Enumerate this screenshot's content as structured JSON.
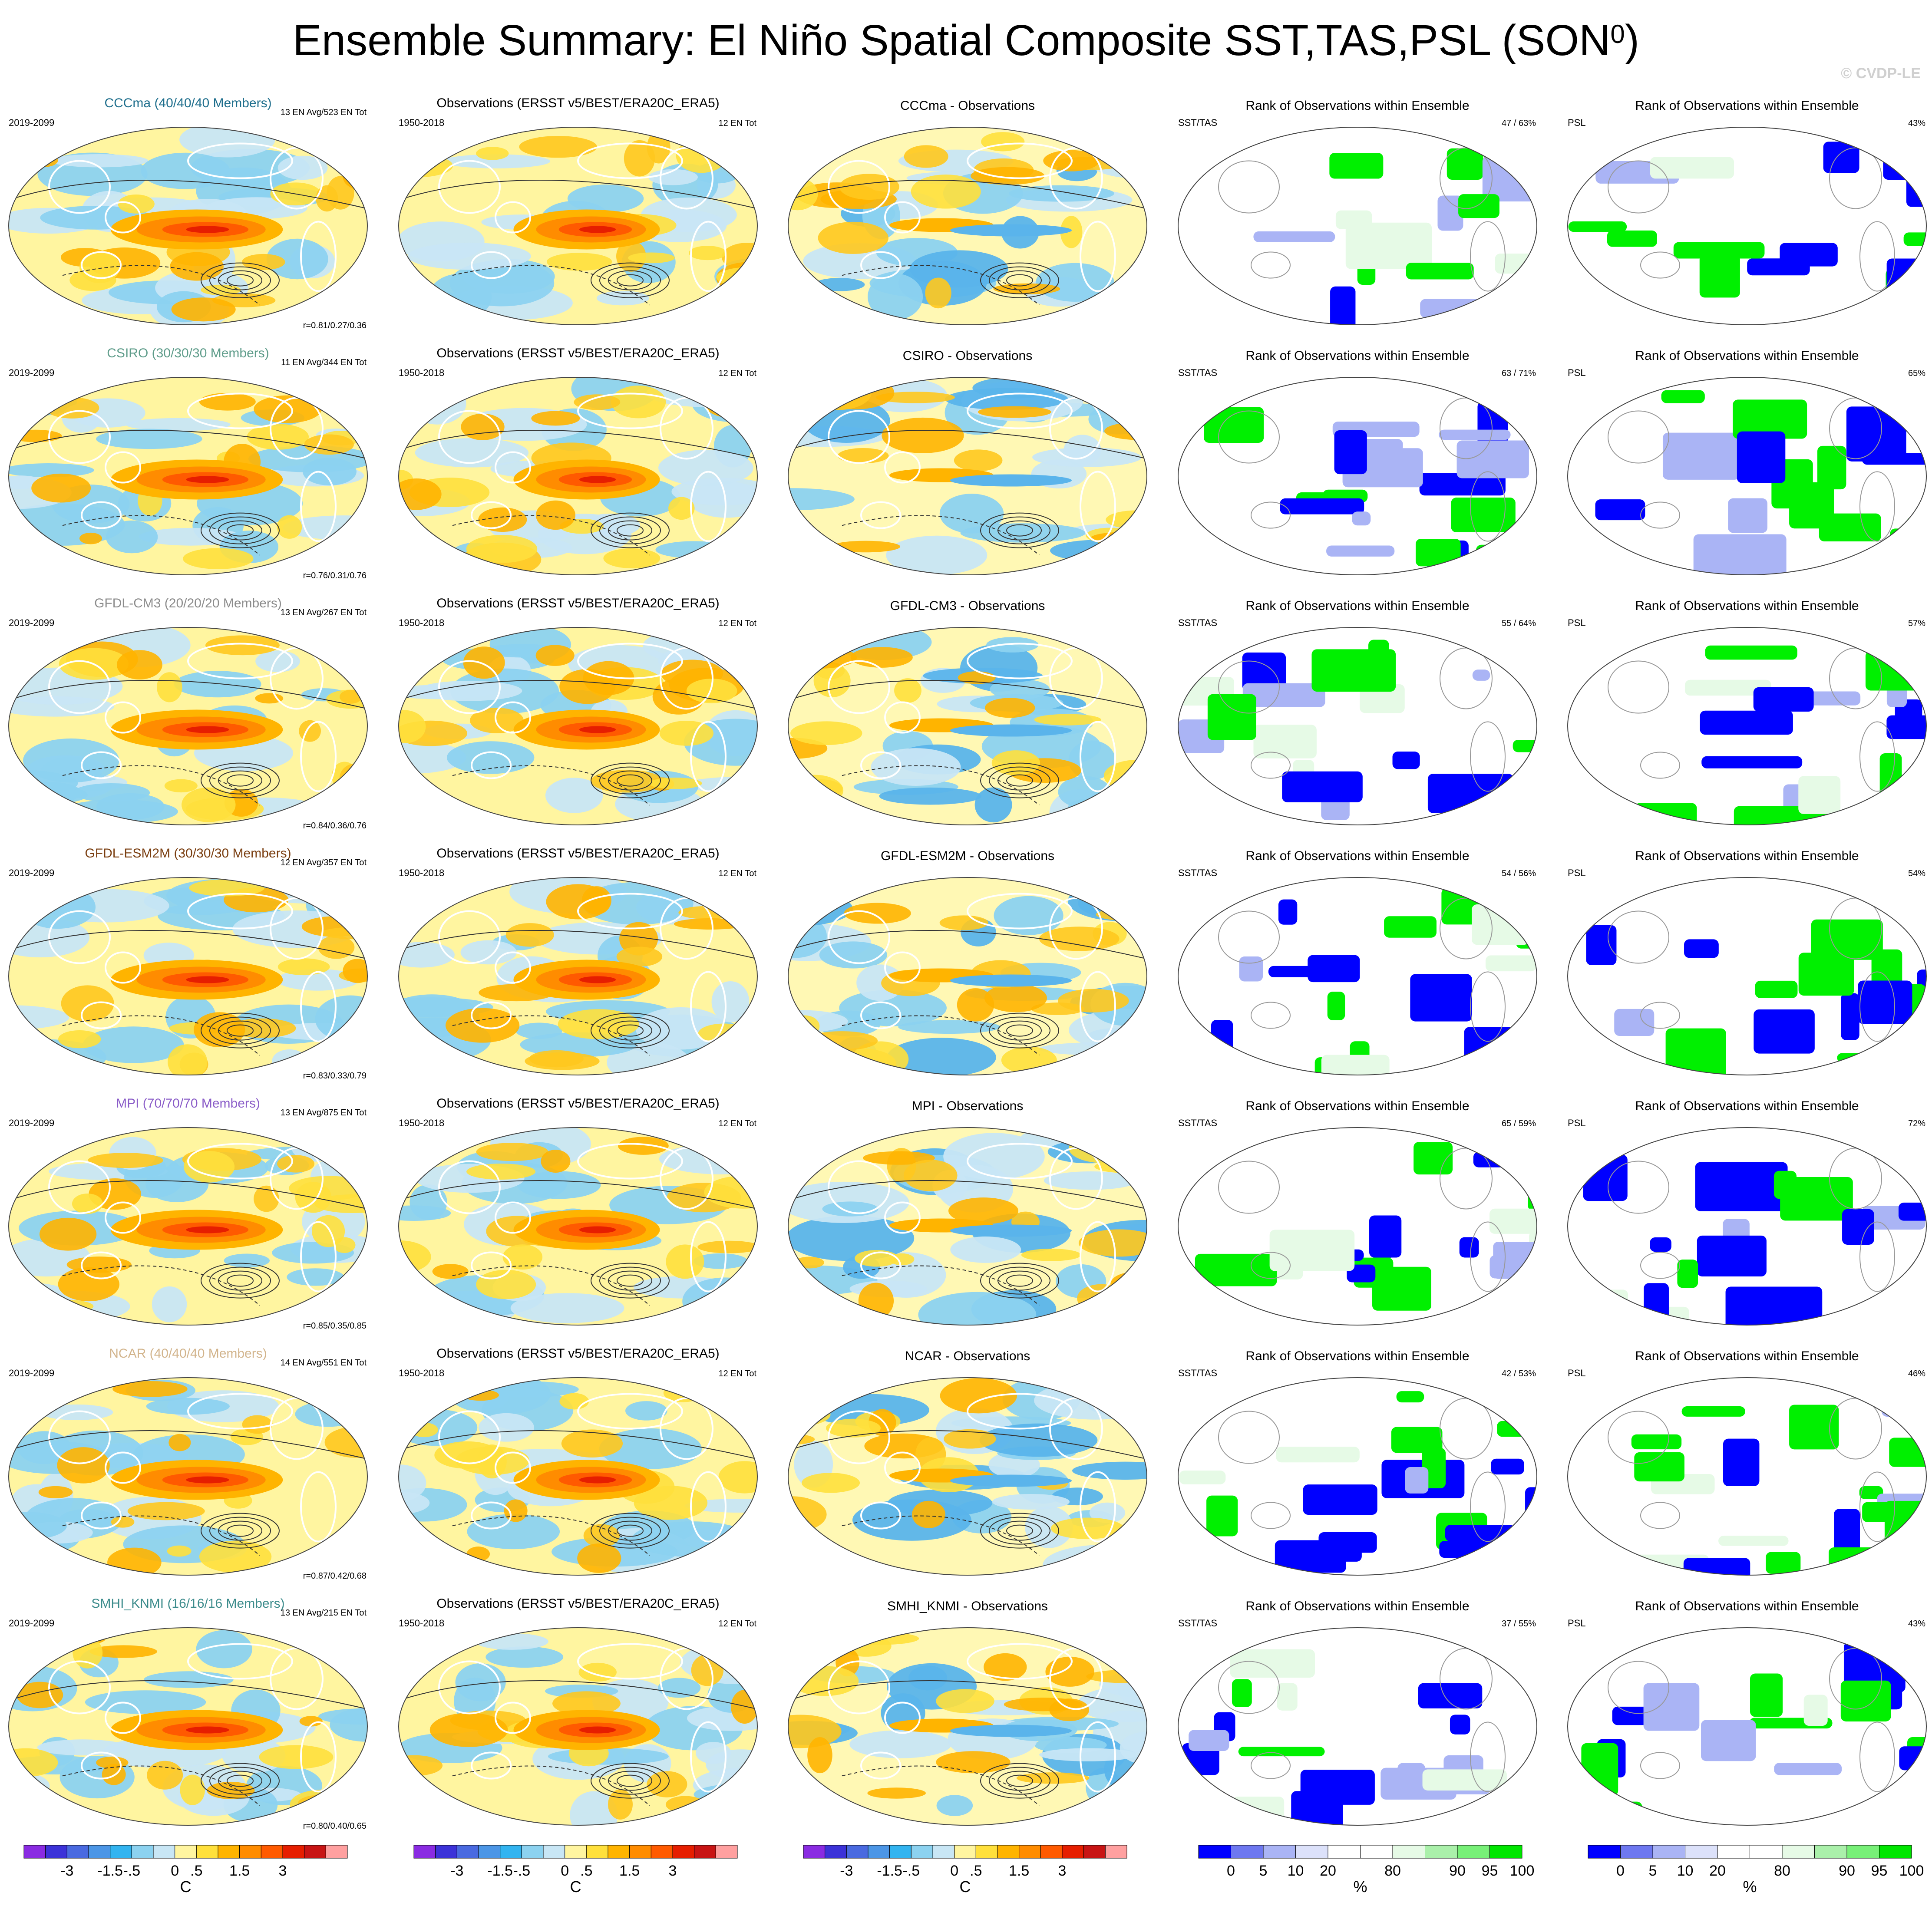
{
  "title": "Ensemble Summary: El Niño Spatial Composite SST,TAS,PSL (SON",
  "title_superscript": "0",
  "watermark": "© CVDP-LE",
  "chart_data": {
    "type": "heatmap",
    "layout": "7 rows x 5 columns of global map panels (Hammer projection)",
    "rows": [
      {
        "model": "CCCma",
        "header": "CCCma (40/40/40 Members)",
        "color": "#1e6e8c",
        "en_info": "13 EN Avg/523 EN Tot",
        "r": "r=0.81/0.27/0.36",
        "diff_title": "CCCma - Observations",
        "rank_sst": "47 / 63%",
        "rank_psl": "43%"
      },
      {
        "model": "CSIRO",
        "header": "CSIRO (30/30/30 Members)",
        "color": "#5e9c8a",
        "en_info": "11 EN Avg/344 EN Tot",
        "r": "r=0.76/0.31/0.76",
        "diff_title": "CSIRO - Observations",
        "rank_sst": "63 / 71%",
        "rank_psl": "65%"
      },
      {
        "model": "GFDL-CM3",
        "header": "GFDL-CM3 (20/20/20 Members)",
        "color": "#8c8c8c",
        "en_info": "13 EN Avg/267 EN Tot",
        "r": "r=0.84/0.36/0.76",
        "diff_title": "GFDL-CM3 - Observations",
        "rank_sst": "55 / 64%",
        "rank_psl": "57%"
      },
      {
        "model": "GFDL-ESM2M",
        "header": "GFDL-ESM2M (30/30/30 Members)",
        "color": "#7a3e10",
        "en_info": "12 EN Avg/357 EN Tot",
        "r": "r=0.83/0.33/0.79",
        "diff_title": "GFDL-ESM2M - Observations",
        "rank_sst": "54 / 56%",
        "rank_psl": "54%"
      },
      {
        "model": "MPI",
        "header": "MPI (70/70/70 Members)",
        "color": "#8a5cc8",
        "en_info": "13 EN Avg/875 EN Tot",
        "r": "r=0.85/0.35/0.85",
        "diff_title": "MPI - Observations",
        "rank_sst": "65 / 59%",
        "rank_psl": "72%"
      },
      {
        "model": "NCAR",
        "header": "NCAR (40/40/40 Members)",
        "color": "#d2b48c",
        "en_info": "14 EN Avg/551 EN Tot",
        "r": "r=0.87/0.42/0.68",
        "diff_title": "NCAR - Observations",
        "rank_sst": "42 / 53%",
        "rank_psl": "46%"
      },
      {
        "model": "SMHI_KNMI",
        "header": "SMHI_KNMI (16/16/16 Members)",
        "color": "#3c8c8c",
        "en_info": "13 EN Avg/215 EN Tot",
        "r": "r=0.80/0.40/0.65",
        "diff_title": "SMHI_KNMI - Observations",
        "rank_sst": "37 / 55%",
        "rank_psl": "43%"
      }
    ],
    "period_model": "2019-2099",
    "period_obs": "1950-2018",
    "obs_title": "Observations (ERSST v5/BEST/ERA20C_ERA5)",
    "obs_en": "12 EN Tot",
    "rank_title": "Rank of Observations within Ensemble",
    "rank_label_sst": "SST/TAS",
    "rank_label_psl": "PSL",
    "temp_colorbar": {
      "colors": [
        "#8a2be2",
        "#3c32d8",
        "#4a6ae0",
        "#4c96e6",
        "#32b4f0",
        "#8cd2f0",
        "#c8e6f5",
        "#fff5a0",
        "#ffe03c",
        "#ffb400",
        "#ff8c00",
        "#ff5a00",
        "#e61e00",
        "#c81414",
        "#ffa0a0"
      ],
      "tick_labels": [
        "-3",
        "-1.5",
        "-.5",
        "0",
        ".5",
        "1.5",
        "3"
      ],
      "unit": "C"
    },
    "rank_colorbar": {
      "colors": [
        "#0000ff",
        "#6e78f0",
        "#aab4f5",
        "#dce1fa",
        "#ffffff",
        "#ffffff",
        "#e6fae6",
        "#aaf0aa",
        "#78f078",
        "#00e600"
      ],
      "tick_labels": [
        "0",
        "5",
        "10",
        "20",
        "80",
        "90",
        "95",
        "100"
      ],
      "unit": "%"
    }
  }
}
